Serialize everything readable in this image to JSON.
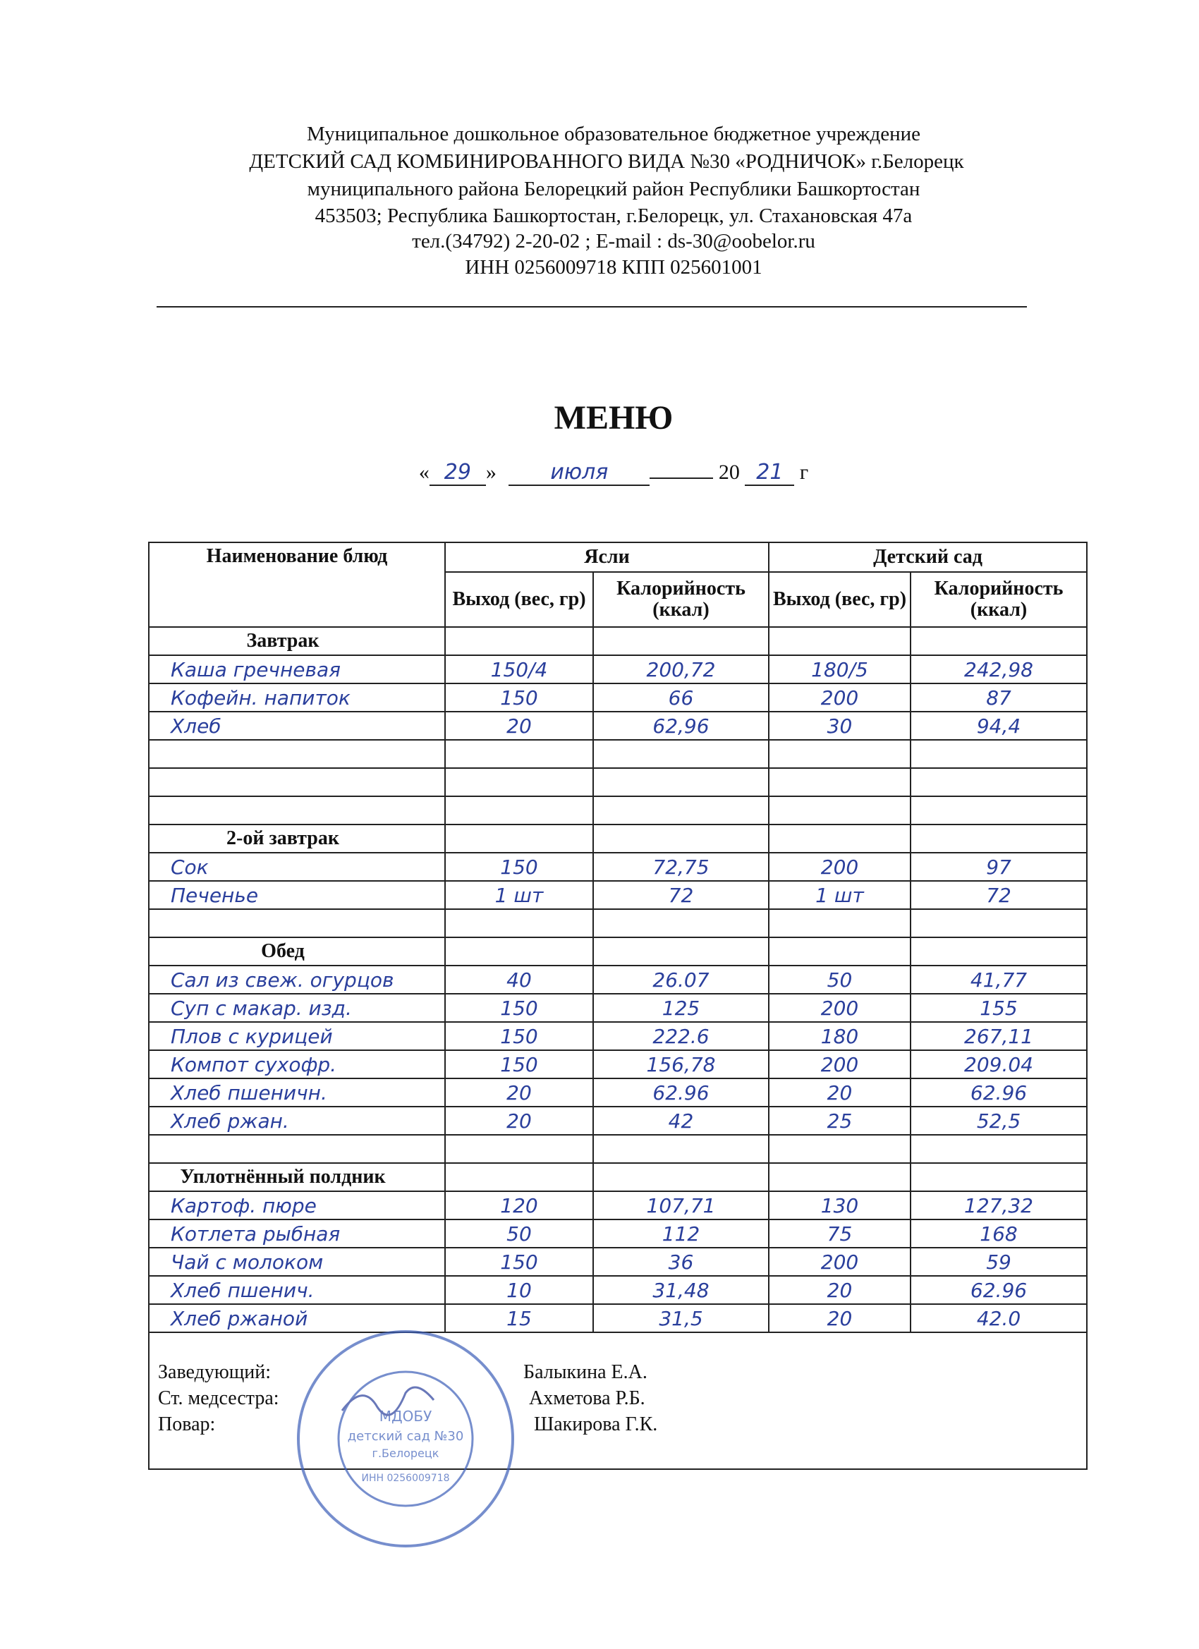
{
  "header": {
    "lines": [
      "Муниципальное дошкольное образовательное бюджетное учреждение",
      "ДЕТСКИЙ САД КОМБИНИРОВАННОГО ВИДА  №30 «РОДНИЧОК» г.Белорецк",
      "муниципального района Белорецкий район Республики Башкортостан",
      "453503; Республика Башкортостан, г.Белорецк, ул. Стахановская 47а",
      "тел.(34792) 2-20-02 ; E-mail : ds-30@oobelor.ru",
      "ИНН 0256009718  КПП 025601001"
    ]
  },
  "title": "МЕНЮ",
  "date": {
    "open": "«",
    "day": "29",
    "close": "»",
    "month": "июля",
    "year_prefix": "20",
    "year_suffix": "21",
    "suffix": "г"
  },
  "table": {
    "col_dish": "Наименование блюд",
    "group_nursery": "Ясли",
    "group_kindergarten": "Детский сад",
    "col_output": "Выход (вес, гр)",
    "col_calories": "Калорийность (ккал)",
    "sections": [
      {
        "name": "Завтрак",
        "rows": [
          [
            "Каша гречневая",
            "150/4",
            "200,72",
            "180/5",
            "242,98"
          ],
          [
            "Кофейн. напиток",
            "150",
            "66",
            "200",
            "87"
          ],
          [
            "Хлеб",
            "20",
            "62,96",
            "30",
            "94,4"
          ],
          [
            "",
            "",
            "",
            "",
            ""
          ],
          [
            "",
            "",
            "",
            "",
            ""
          ],
          [
            "",
            "",
            "",
            "",
            ""
          ]
        ]
      },
      {
        "name": "2-ой завтрак",
        "rows": [
          [
            "Сок",
            "150",
            "72,75",
            "200",
            "97"
          ],
          [
            "Печенье",
            "1 шт",
            "72",
            "1 шт",
            "72"
          ],
          [
            "",
            "",
            "",
            "",
            ""
          ]
        ]
      },
      {
        "name": "Обед",
        "rows": [
          [
            "Сал из свеж. огурцов",
            "40",
            "26.07",
            "50",
            "41,77"
          ],
          [
            "Суп с макар. изд.",
            "150",
            "125",
            "200",
            "155"
          ],
          [
            "Плов с курицей",
            "150",
            "222.6",
            "180",
            "267,11"
          ],
          [
            "Компот сухофр.",
            "150",
            "156,78",
            "200",
            "209.04"
          ],
          [
            "Хлеб пшеничн.",
            "20",
            "62.96",
            "20",
            "62.96"
          ],
          [
            "Хлеб ржан.",
            "20",
            "42",
            "25",
            "52,5"
          ],
          [
            "",
            "",
            "",
            "",
            ""
          ]
        ]
      },
      {
        "name": "Уплотнённый полдник",
        "rows": [
          [
            "Картоф. пюре",
            "120",
            "107,71",
            "130",
            "127,32"
          ],
          [
            "Котлета рыбная",
            "50",
            "112",
            "75",
            "168"
          ],
          [
            "Чай с молоком",
            "150",
            "36",
            "200",
            "59"
          ],
          [
            "Хлеб пшенич.",
            "10",
            "31,48",
            "20",
            "62.96"
          ],
          [
            "Хлеб ржаной",
            "15",
            "31,5",
            "20",
            "42.0"
          ]
        ]
      }
    ]
  },
  "signatures": [
    {
      "role": "Заведующий:",
      "name": "Балыкина Е.А."
    },
    {
      "role": "Ст. медсестра:",
      "name": "Ахметова Р.Б."
    },
    {
      "role": "Повар:",
      "name": "Шакирова Г.К."
    }
  ],
  "stamp": {
    "text": "МДОБУ детский сад №30 г.Белорецк ИНН 0256009718",
    "color": "#3d5fb8"
  },
  "colors": {
    "ink": "#2a3f9c",
    "print": "#111111"
  }
}
